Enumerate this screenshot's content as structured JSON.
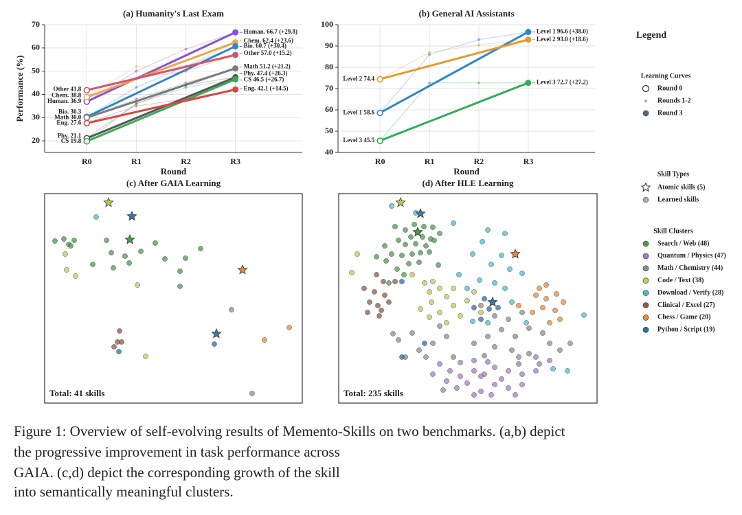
{
  "chart_data": [
    {
      "type": "line",
      "title": "(a) Humanity's Last Exam",
      "x_label": "Round",
      "y_label": "Performance (%)",
      "categories": [
        "R0",
        "R1",
        "R2",
        "R3"
      ],
      "ylim": [
        15,
        70
      ],
      "yticks": [
        20,
        30,
        40,
        50,
        60,
        70
      ],
      "grid": true,
      "series": [
        {
          "color": "#8b4fd8",
          "values": [
            36.9,
            50,
            59.5,
            66.7
          ],
          "value_labels": [
            "Human. 36.9",
            null,
            null,
            "Human. 66.7  (+29.8)"
          ]
        },
        {
          "color": "#e8a94a",
          "values": [
            38.8,
            52,
            52,
            62.4
          ],
          "value_labels": [
            "Chem. 38.8",
            null,
            null,
            "Chem. 62.4  (+23.6)"
          ]
        },
        {
          "color": "#2f86c9",
          "values": [
            30.3,
            43,
            52,
            60.7
          ],
          "value_labels": [
            "Bio. 30.3",
            null,
            null,
            "Bio. 60.7  (+30.4)"
          ]
        },
        {
          "color": "#d6546a",
          "values": [
            41.8,
            47,
            50,
            57.0
          ],
          "value_labels": [
            "Other 41.8",
            null,
            null,
            "Other 57.0  (+15.2)"
          ]
        },
        {
          "color": "#7a7a7a",
          "values": [
            30.0,
            38,
            45,
            51.2
          ],
          "value_labels": [
            "Math 30.0",
            null,
            null,
            "Math 51.2  (+21.2)"
          ]
        },
        {
          "color": "#555555",
          "values": [
            21.1,
            36,
            44,
            47.4
          ],
          "value_labels": [
            "Phy. 21.1",
            null,
            null,
            "Phy. 47.4  (+26.3)"
          ]
        },
        {
          "color": "#3aaa55",
          "values": [
            19.8,
            36,
            43,
            46.5
          ],
          "value_labels": [
            "CS 19.8",
            null,
            null,
            "CS 46.5  (+26.7)"
          ]
        },
        {
          "color": "#d94545",
          "values": [
            27.6,
            35,
            38,
            42.1
          ],
          "value_labels": [
            "Eng. 27.6",
            null,
            null,
            "Eng. 42.1  (+14.5)"
          ]
        }
      ]
    },
    {
      "type": "line",
      "title": "(b) General AI Assistants",
      "x_label": "Round",
      "categories": [
        "R0",
        "R1",
        "R2",
        "R3"
      ],
      "ylim": [
        40,
        100
      ],
      "yticks": [
        40,
        50,
        60,
        70,
        80,
        90,
        100
      ],
      "grid": true,
      "series": [
        {
          "color": "#2f86c9",
          "values": [
            58.6,
            86,
            93,
            96.6
          ],
          "value_labels": [
            "Level 1 58.6",
            null,
            null,
            "Level 1 96.6  (+38.0)"
          ]
        },
        {
          "color": "#e89a2a",
          "values": [
            74.4,
            87,
            90.5,
            93.0
          ],
          "value_labels": [
            "Level 2 74.4",
            null,
            null,
            "Level 2 93.0  (+18.6)"
          ]
        },
        {
          "color": "#2fae55",
          "values": [
            45.5,
            72.7,
            72.7,
            72.7
          ],
          "value_labels": [
            "Level 3 45.5",
            null,
            null,
            "Level 3 72.7  (+27.2)"
          ]
        }
      ]
    },
    {
      "type": "scatter",
      "title": "(c) After GAIA Learning",
      "annotation": "Total: 41 skills",
      "xlim": [
        0,
        375
      ],
      "ylim": [
        305,
        0
      ],
      "series": [
        {
          "name": "Search / Web (48)",
          "color": "#4e9a4e",
          "x": [
            15,
            28,
            35,
            43,
            38,
            90,
            97,
            70,
            117,
            100,
            161,
            175,
            197,
            197,
            227,
            140,
            123,
            205
          ],
          "y": [
            69,
            66,
            74,
            68,
            76,
            68,
            86,
            103,
            91,
            108,
            72,
            95,
            113,
            135,
            80,
            84,
            101,
            94
          ]
        },
        {
          "name": "Math / Chemistry (44)",
          "color": "#8c8c8c",
          "x": [
            272,
            302
          ],
          "y": [
            169,
            291
          ]
        },
        {
          "name": "Code / Text (38)",
          "color": "#c4c75a",
          "x": [
            30,
            32,
            45,
            135,
            147
          ],
          "y": [
            88,
            111,
            120,
            133,
            237
          ]
        },
        {
          "name": "Download / Verify (28)",
          "color": "#4bbcd0",
          "x": [
            75
          ],
          "y": [
            34
          ]
        },
        {
          "name": "Clinical / Excel (27)",
          "color": "#8c5a4a",
          "x": [
            109,
            106,
            112,
            101
          ],
          "y": [
            200,
            216,
            216,
            223
          ]
        },
        {
          "name": "Chess / Game (20)",
          "color": "#ea8a3a",
          "x": [
            320,
            356
          ],
          "y": [
            213,
            195
          ]
        },
        {
          "name": "Python / Script (19)",
          "color": "#2b6ea8",
          "x": [
            108,
            247
          ],
          "y": [
            230,
            219
          ]
        }
      ],
      "atomic": {
        "x": [
          93,
          127,
          124,
          288,
          250
        ],
        "y": [
          13,
          33,
          67,
          111,
          204
        ],
        "colors": [
          "#b8c94a",
          "#3a78b0",
          "#4a9a4a",
          "#e8893a",
          "#3a78b0"
        ]
      }
    },
    {
      "type": "scatter",
      "title": "(d) After HLE Learning",
      "annotation": "Total: 235 skills",
      "xlim": [
        0,
        376
      ],
      "ylim": [
        305,
        0
      ],
      "series": [
        {
          "name": "Search / Web (48)",
          "color": "#4e9a4e",
          "x": [
            82,
            97,
            110,
            124,
            137,
            105,
            122,
            134,
            87,
            97,
            112,
            127,
            77,
            92,
            107,
            119,
            132,
            69,
            102,
            117,
            145,
            85,
            139,
            147,
            67,
            55,
            95,
            73
          ],
          "y": [
            48,
            53,
            45,
            48,
            49,
            63,
            63,
            66,
            68,
            74,
            73,
            76,
            88,
            90,
            88,
            86,
            85,
            98,
            102,
            100,
            104,
            110,
            68,
            58,
            76,
            92,
            118,
            130
          ]
        },
        {
          "name": "Quantum / Physics (47)",
          "color": "#a47dc9",
          "x": [
            127,
            147,
            162,
            177,
            197,
            212,
            227,
            247,
            267,
            287,
            137,
            157,
            172,
            187,
            207,
            227,
            247,
            267,
            197,
            217,
            237,
            177,
            287,
            307,
            257,
            222,
            197,
            152,
            207,
            262
          ],
          "y": [
            238,
            248,
            258,
            246,
            258,
            263,
            253,
            258,
            263,
            258,
            263,
            273,
            283,
            276,
            288,
            278,
            283,
            278,
            243,
            245,
            270,
            266,
            238,
            243,
            293,
            293,
            293,
            286,
            266,
            238
          ]
        },
        {
          "name": "Math / Chemistry (44)",
          "color": "#8c8c8c",
          "x": [
            207,
            227,
            247,
            267,
            237,
            257,
            277,
            297,
            307,
            217,
            197,
            227,
            252,
            277,
            157,
            137,
            117,
            97,
            87,
            107,
            79,
            167,
            292,
            337,
            322,
            147,
            212,
            262
          ],
          "y": [
            163,
            178,
            183,
            173,
            198,
            208,
            196,
            203,
            218,
            208,
            218,
            223,
            228,
            233,
            208,
            218,
            228,
            238,
            213,
            203,
            204,
            238,
            248,
            218,
            228,
            193,
            236,
            248
          ]
        },
        {
          "name": "Code / Text (38)",
          "color": "#c4c75a",
          "x": [
            107,
            125,
            132,
            147,
            157,
            135,
            119,
            147,
            167,
            187,
            177,
            157,
            132,
            197,
            207,
            27,
            19,
            137,
            167
          ],
          "y": [
            118,
            130,
            143,
            138,
            150,
            158,
            168,
            173,
            163,
            156,
            178,
            188,
            180,
            143,
            173,
            88,
            115,
            128,
            138
          ]
        },
        {
          "name": "Download / Verify (28)",
          "color": "#4bbcd0",
          "x": [
            77,
            112,
            167,
            217,
            242,
            209,
            195,
            222,
            237,
            249,
            205,
            227,
            242,
            252,
            195,
            217,
            267,
            273,
            312,
            333,
            357,
            175,
            187
          ],
          "y": [
            18,
            28,
            43,
            53,
            58,
            70,
            88,
            103,
            90,
            110,
            126,
            130,
            138,
            158,
            186,
            188,
            116,
            188,
            255,
            258,
            177,
            118,
            138
          ]
        },
        {
          "name": "Clinical / Excel (27)",
          "color": "#8c5a4a",
          "x": [
            55,
            65,
            37,
            52,
            67,
            45,
            57,
            42,
            62,
            82,
            73,
            59
          ],
          "y": [
            118,
            128,
            138,
            143,
            148,
            158,
            163,
            173,
            170,
            128,
            158,
            178
          ]
        },
        {
          "name": "Chess / Game (20)",
          "color": "#ea8a3a",
          "x": [
            292,
            302,
            287,
            302,
            317,
            327,
            297,
            315,
            282,
            322,
            307,
            262
          ],
          "y": [
            138,
            133,
            148,
            153,
            146,
            158,
            166,
            170,
            173,
            183,
            188,
            163
          ]
        },
        {
          "name": "Python / Script (19)",
          "color": "#2b6ea8",
          "x": [
            212,
            219,
            207,
            92,
            232,
            197,
            92,
            125
          ],
          "y": [
            153,
            168,
            183,
            128,
            166,
            166,
            238,
            218
          ]
        }
      ],
      "atomic": {
        "x": [
          90,
          119,
          115,
          257,
          224
        ],
        "y": [
          13,
          29,
          56,
          88,
          158
        ],
        "colors": [
          "#b8c94a",
          "#3a78b0",
          "#4a9a4a",
          "#e8893a",
          "#3a78b0"
        ]
      }
    }
  ],
  "legend": {
    "title": "Legend",
    "curves_title": "Learning Curves",
    "curves": [
      "Round 0",
      "Rounds 1-2",
      "Round 3"
    ],
    "types_title": "Skill Types",
    "types": [
      "Atomic skills (5)",
      "Learned skills"
    ],
    "clusters_title": "Skill Clusters"
  },
  "caption": [
    "Figure 1: Overview of self-evolving results of Memento-Skills on two benchmarks. (a,b) depict",
    "the progressive improvement in task performance across",
    "GAIA. (c,d) depict the corresponding growth of the skill",
    "into semantically meaningful clusters."
  ]
}
